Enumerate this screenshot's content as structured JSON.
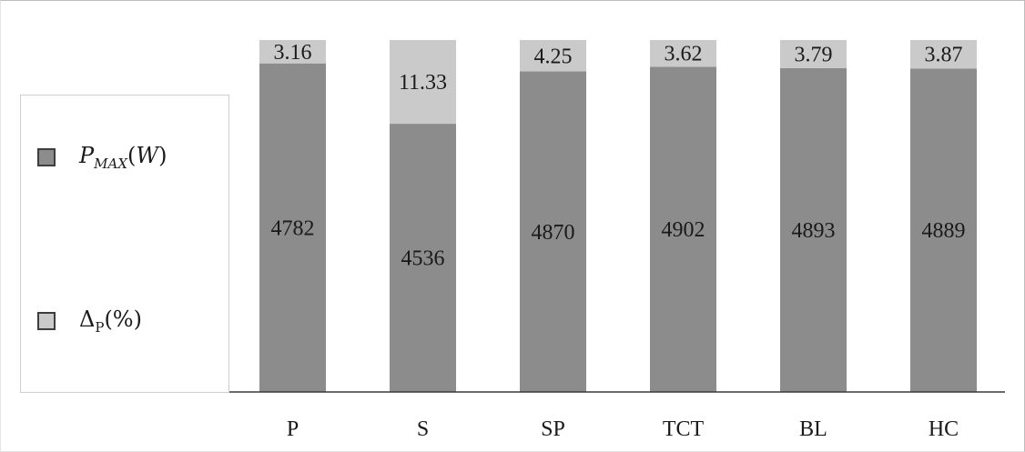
{
  "chart_data": {
    "type": "bar",
    "stacked": true,
    "categories": [
      "P",
      "S",
      "SP",
      "TCT",
      "BL",
      "HC"
    ],
    "series": [
      {
        "name": "P_MAX(W)",
        "values": [
          4782,
          4536,
          4870,
          4902,
          4893,
          4889
        ],
        "color": "#8c8c8c"
      },
      {
        "name": "Δ_P(%)",
        "values": [
          3.16,
          11.33,
          4.25,
          3.62,
          3.79,
          3.87
        ],
        "color": "#cacaca"
      }
    ],
    "title": "",
    "xlabel": "",
    "ylabel": "",
    "grid": false,
    "legend_position": "left"
  },
  "legend": {
    "items": [
      {
        "label": "P_MAX(W)",
        "color": "#8c8c8c"
      },
      {
        "label": "Δ_P(%)",
        "color": "#cacaca"
      }
    ]
  }
}
